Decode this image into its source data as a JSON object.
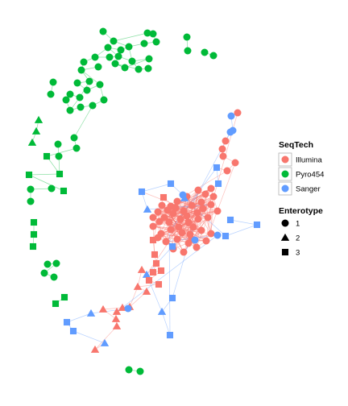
{
  "chart_data": {
    "type": "network",
    "node_size_scale": 1,
    "legends": [
      {
        "title": "SeqTech",
        "entries": [
          {
            "label": "Illumina",
            "color": "#F8766D"
          },
          {
            "label": "Pyro454",
            "color": "#00BA38"
          },
          {
            "label": "Sanger",
            "color": "#619CFF"
          }
        ]
      },
      {
        "title": "Enterotype",
        "entries": [
          {
            "label": "1",
            "shape": "circle"
          },
          {
            "label": "2",
            "shape": "triangle"
          },
          {
            "label": "3",
            "shape": "square"
          }
        ]
      }
    ],
    "edge_colors": {
      "Illumina": "#F8766D",
      "Pyro454": "#00BA38",
      "Sanger": "#619CFF"
    }
  }
}
